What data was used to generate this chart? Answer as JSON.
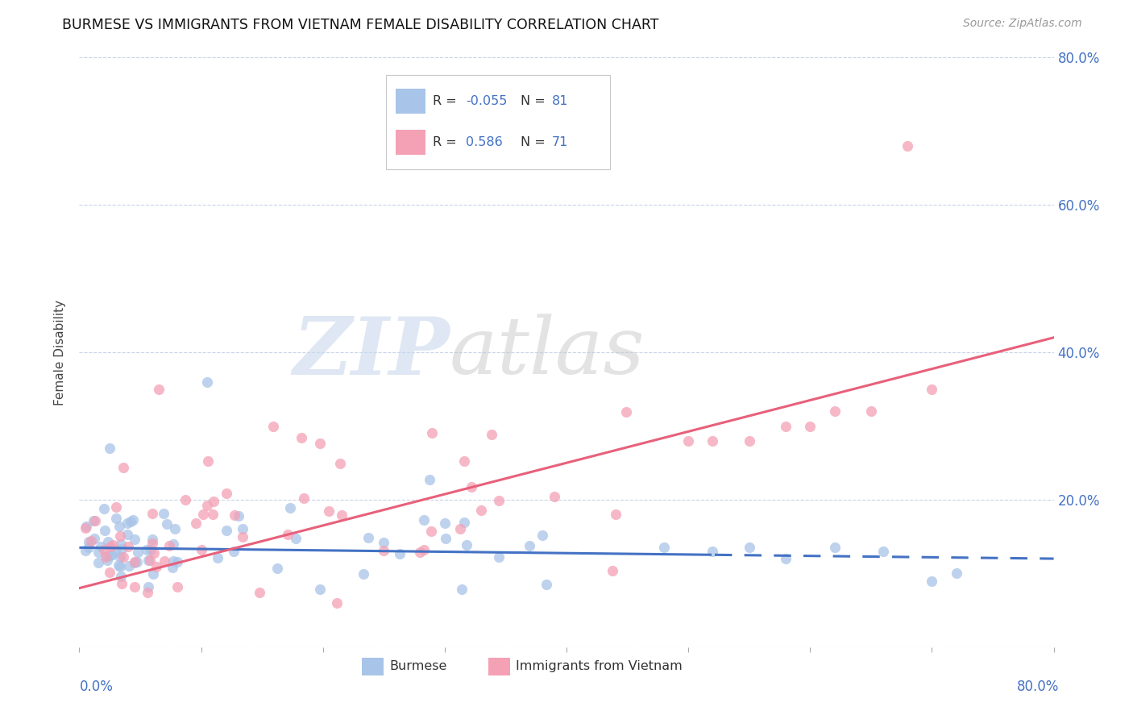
{
  "title": "BURMESE VS IMMIGRANTS FROM VIETNAM FEMALE DISABILITY CORRELATION CHART",
  "source": "Source: ZipAtlas.com",
  "ylabel": "Female Disability",
  "burmese_R": -0.055,
  "burmese_N": 81,
  "vietnam_R": 0.586,
  "vietnam_N": 71,
  "burmese_color": "#a8c4e8",
  "vietnam_color": "#f4a0b5",
  "burmese_line_color": "#4472c4",
  "vietnam_line_color": "#e8607a",
  "background_color": "#ffffff",
  "grid_color": "#c8d4e8",
  "xlim": [
    0.0,
    0.8
  ],
  "ylim": [
    0.0,
    0.8
  ],
  "burmese_line_start_x": 0.0,
  "burmese_line_start_y": 0.135,
  "burmese_line_end_solid_x": 0.52,
  "burmese_line_end_x": 0.8,
  "burmese_line_end_y": 0.12,
  "vietnam_line_start_x": 0.0,
  "vietnam_line_start_y": 0.08,
  "vietnam_line_end_x": 0.8,
  "vietnam_line_end_y": 0.42,
  "watermark_zip_color": "#c8d8ec",
  "watermark_atlas_color": "#c8c8c8"
}
